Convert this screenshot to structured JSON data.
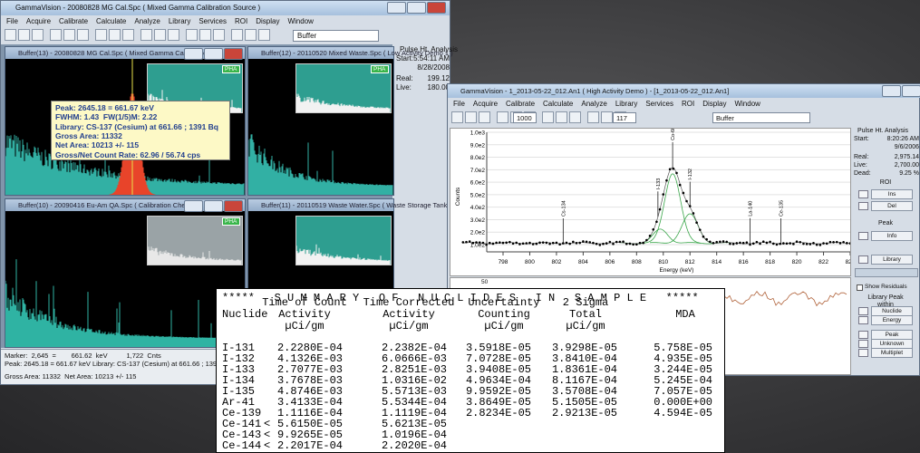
{
  "main_window": {
    "title": "GammaVision - 20080828 MG Cal.Spc ( Mixed Gamma Calibration Source )",
    "menu": [
      "File",
      "Acquire",
      "Calibrate",
      "Calculate",
      "Analyze",
      "Library",
      "Services",
      "ROI",
      "Display",
      "Window"
    ],
    "buffer_field": "Buffer",
    "panes": [
      {
        "title": "Buffer(13) - 20080828 MG Cal.Spc ( Mixed Gamma Calibration So...",
        "badge": "PHA"
      },
      {
        "title": "Buffer(12) - 20110520 Mixed Waste.Spc ( Low Activity Demo 1 )",
        "badge": "PHA"
      },
      {
        "title": "Buffer(10) - 20090416 Eu-Am QA.Spc ( Calibration Check )",
        "badge": "PHA"
      },
      {
        "title": "Buffer(11) - 20110519 Waste Water.Spc ( Waste Storage Tank 'A' )"
      }
    ],
    "tooltip": [
      "Peak: 2645.18 = 661.67 keV",
      "FWHM: 1.43  FW(1/5)M: 2.22",
      "Library: CS-137 (Cesium) at 661.66 ; 1391 Bq",
      "Gross Area: 11332",
      "Net Area: 10213 +/- 115",
      "Gross/Net Count Rate: 62.96 / 56.74 cps"
    ],
    "side_panel": {
      "heading": "Pulse Ht. Analysis",
      "start_label": "Start:",
      "start_time": "5:54:11 AM",
      "start_date": "8/28/2008",
      "real_label": "Real:",
      "real": "199.12",
      "live_label": "Live:",
      "live": "180.00"
    },
    "status": [
      "Marker:  2,645  =        661.62  keV          1,722  Cnts",
      "Peak: 2645.18 = 661.67 keV Library: CS-137 (Cesium) at 661.66 ; 1391 Bq",
      "Gross Area: 11332  Net Area: 10213 +/- 115"
    ]
  },
  "fit_window": {
    "title": "GammaVision - 1_2013-05-22_012.An1 ( High Activity Demo ) - [1_2013-05-22_012.An1]",
    "menu": [
      "File",
      "Acquire",
      "Calibrate",
      "Calculate",
      "Analyze",
      "Library",
      "Services",
      "ROI",
      "Display",
      "Window"
    ],
    "fields": [
      "1000",
      "117",
      "Buffer"
    ],
    "chart": {
      "yticks": [
        "1.0e3",
        "9.0e2",
        "8.0e2",
        "7.0e2",
        "6.0e2",
        "5.0e2",
        "4.0e2",
        "3.0e2",
        "2.0e2",
        "1.0e2"
      ],
      "xticks": [
        "798",
        "800",
        "802",
        "804",
        "806",
        "808",
        "810",
        "812",
        "814",
        "816",
        "818",
        "820",
        "822",
        "824"
      ],
      "ylabel": "Counts",
      "xlabel": "Energy (keV)",
      "peak_labels": [
        "Cs-134",
        "I-133",
        "Co-60",
        "I-132",
        "La-140",
        "Ce-135"
      ],
      "residual_tick": "50"
    },
    "side_panel": {
      "heading": "Pulse Ht. Analysis",
      "start_label": "Start:",
      "start_time": "8:20:26 AM",
      "start_date": "9/6/2006",
      "real_label": "Real:",
      "real": "2,975.14",
      "live_label": "Live:",
      "live": "2,700.00",
      "dead_label": "Dead:",
      "dead": "9.25 %",
      "roi": "ROI",
      "ins": "Ins",
      "del": "Del",
      "peak": "Peak",
      "info": "Info",
      "library": "Library",
      "show_residuals": "Show Residuals",
      "library_peak": "Library Peak",
      "within": "within",
      "nuclide": "Nuclide",
      "energy": "Energy",
      "peak_button": "Peak",
      "unknown": "Unknown",
      "multiplet": "Multiplet"
    }
  },
  "summary": {
    "banner": "*****   S U M M A R Y   O F   N U C L I D E S   I N   S A M P L E   *****",
    "nuclide_header": "Nuclide",
    "columns": [
      [
        "Time of Count",
        "Activity",
        "µCi/gm"
      ],
      [
        "Time Corrected",
        "Activity",
        "µCi/gm"
      ],
      [
        "Uncertainty",
        "Counting",
        "µCi/gm"
      ],
      [
        "2 Sigma",
        "Total",
        "µCi/gm"
      ],
      [
        "MDA"
      ]
    ],
    "rows": [
      {
        "nuclide": "I-131",
        "values": [
          "2.2280E-04",
          "2.2382E-04",
          "3.5918E-05",
          "3.9298E-05",
          "5.758E-05"
        ]
      },
      {
        "nuclide": "I-132",
        "values": [
          "4.1326E-03",
          "6.0666E-03",
          "7.0728E-05",
          "3.8410E-04",
          "4.935E-05"
        ]
      },
      {
        "nuclide": "I-133",
        "values": [
          "2.7077E-03",
          "2.8251E-03",
          "3.9408E-05",
          "1.8361E-04",
          "3.244E-05"
        ]
      },
      {
        "nuclide": "I-134",
        "values": [
          "3.7678E-03",
          "1.0316E-02",
          "4.9634E-04",
          "8.1167E-04",
          "5.245E-04"
        ]
      },
      {
        "nuclide": "I-135",
        "values": [
          "4.8746E-03",
          "5.5713E-03",
          "9.9592E-05",
          "3.5708E-04",
          "7.057E-05"
        ]
      },
      {
        "nuclide": "Ar-41",
        "values": [
          "3.4133E-04",
          "5.5344E-04",
          "3.8649E-05",
          "5.1505E-05",
          "0.000E+00"
        ]
      },
      {
        "nuclide": "Ce-139",
        "values": [
          "1.1116E-04",
          "1.1119E-04",
          "2.8234E-05",
          "2.9213E-05",
          "4.594E-05"
        ]
      },
      {
        "nuclide": "Ce-141",
        "flag": "<",
        "values": [
          "5.6150E-05",
          "5.6213E-05"
        ]
      },
      {
        "nuclide": "Ce-143",
        "flag": "<",
        "values": [
          "9.9265E-05",
          "1.0196E-04"
        ]
      },
      {
        "nuclide": "Ce-144",
        "flag": "<",
        "values": [
          "2.2017E-04",
          "2.2020E-04"
        ]
      }
    ]
  }
}
